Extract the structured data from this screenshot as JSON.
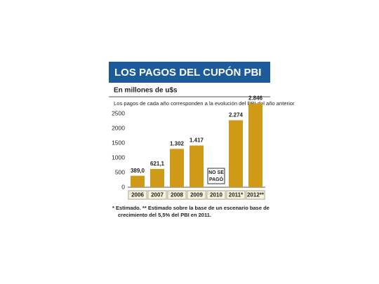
{
  "chart_data": {
    "type": "bar",
    "title": "LOS PAGOS DEL CUPÓN PBI",
    "unit_label": "En millones de u$s",
    "subtitle": "Los pagos de cada año corresponden a la evolución del PBI del año anterior",
    "categories": [
      "2006",
      "2007",
      "2008",
      "2009",
      "2010",
      "2011*",
      "2012**"
    ],
    "values": [
      389.0,
      621.1,
      1302,
      1417,
      null,
      2274,
      2846
    ],
    "value_labels": [
      "389,0",
      "621,1",
      "1.302",
      "1.417",
      null,
      "2.274",
      "2.846"
    ],
    "annotation": {
      "category_index": 4,
      "lines": [
        "NO SE",
        "PAGÓ"
      ]
    },
    "color": "#cf9b17",
    "ylim": [
      0,
      2500
    ],
    "yticks": [
      0,
      500,
      1000,
      1500,
      2000,
      2500
    ],
    "grid": false,
    "footnote": [
      "* Estimado. ** Estimado sobre la base de un escenario base de",
      "crecimiento del 5,5% del PBI en 2011."
    ]
  }
}
